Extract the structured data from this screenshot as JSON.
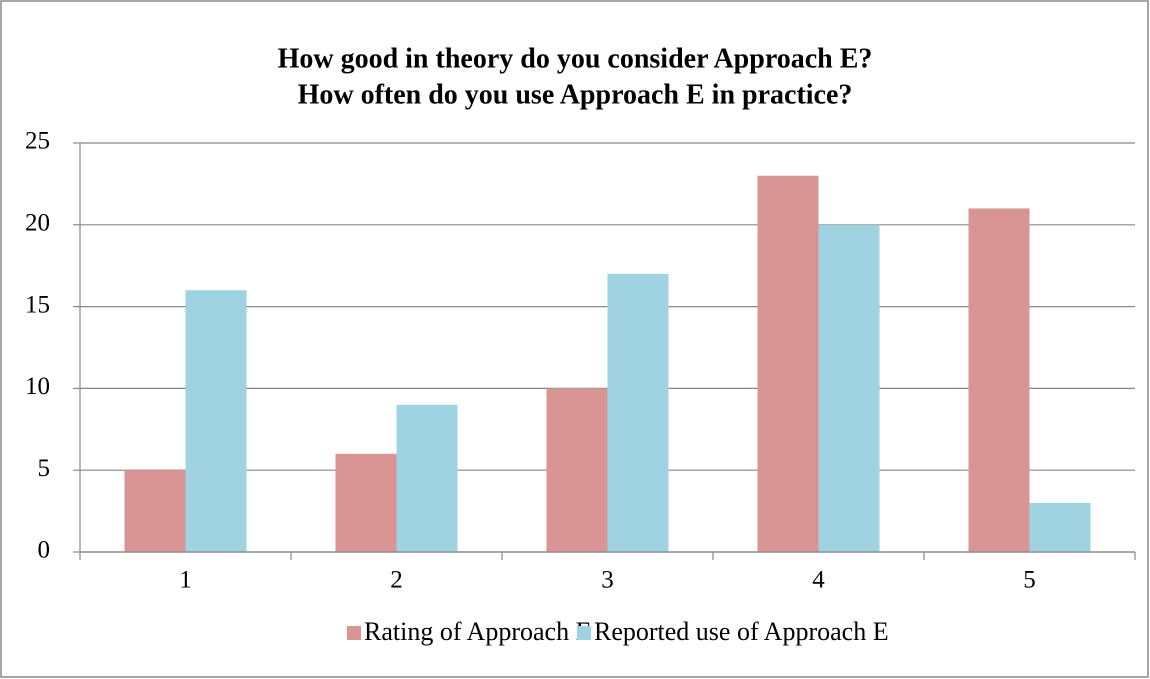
{
  "chart_data": {
    "type": "bar",
    "title": [
      "How good in theory do you consider Approach E?",
      "How often do you use Approach E in practice?"
    ],
    "categories": [
      "1",
      "2",
      "3",
      "4",
      "5"
    ],
    "series": [
      {
        "name": "Rating of Approach E",
        "color": "#d99594",
        "values": [
          5,
          6,
          10,
          23,
          21
        ]
      },
      {
        "name": "Reported use of Approach E",
        "color": "#a0d3e1",
        "values": [
          16,
          9,
          17,
          20,
          3
        ]
      }
    ],
    "ylim": [
      0,
      25
    ],
    "yticks": [
      0,
      5,
      10,
      15,
      20,
      25
    ],
    "grid": true,
    "legend": "bottom"
  }
}
